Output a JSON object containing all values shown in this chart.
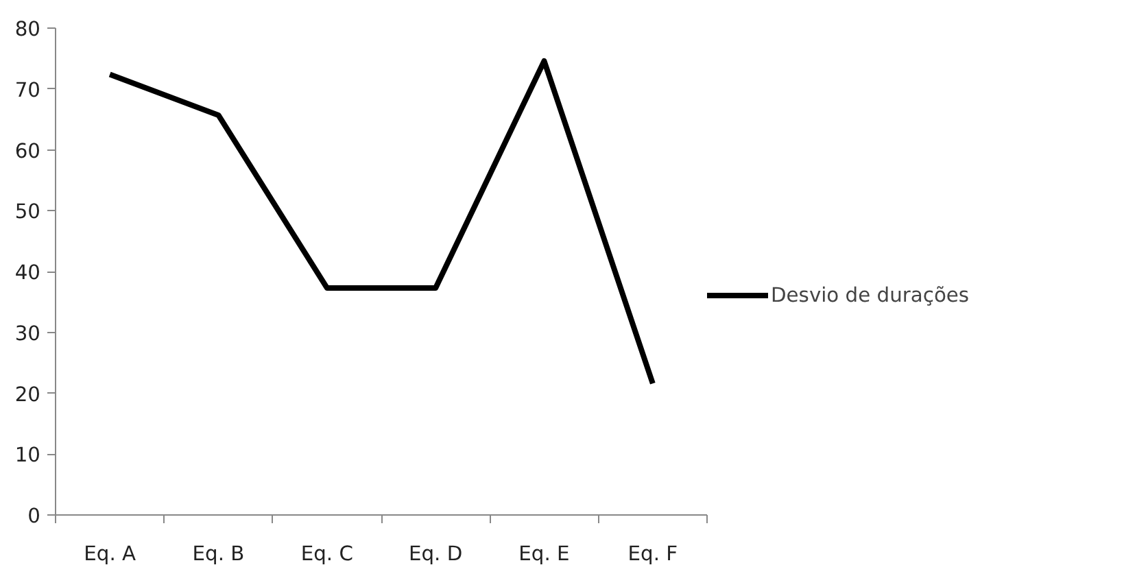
{
  "chart_data": {
    "type": "line",
    "categories": [
      "Eq. A",
      "Eq. B",
      "Eq. C",
      "Eq. D",
      "Eq. E",
      "Eq. F"
    ],
    "series": [
      {
        "name": "Desvio de durações",
        "color": "#000000",
        "values": [
          72.4,
          65.7,
          37.3,
          37.3,
          74.6,
          21.6
        ]
      }
    ],
    "ylim": [
      0,
      80
    ],
    "yticks": [
      0,
      10,
      20,
      30,
      40,
      50,
      60,
      70,
      80
    ],
    "grid": false,
    "legend": "right",
    "marker": "none",
    "line_style": "solid"
  }
}
